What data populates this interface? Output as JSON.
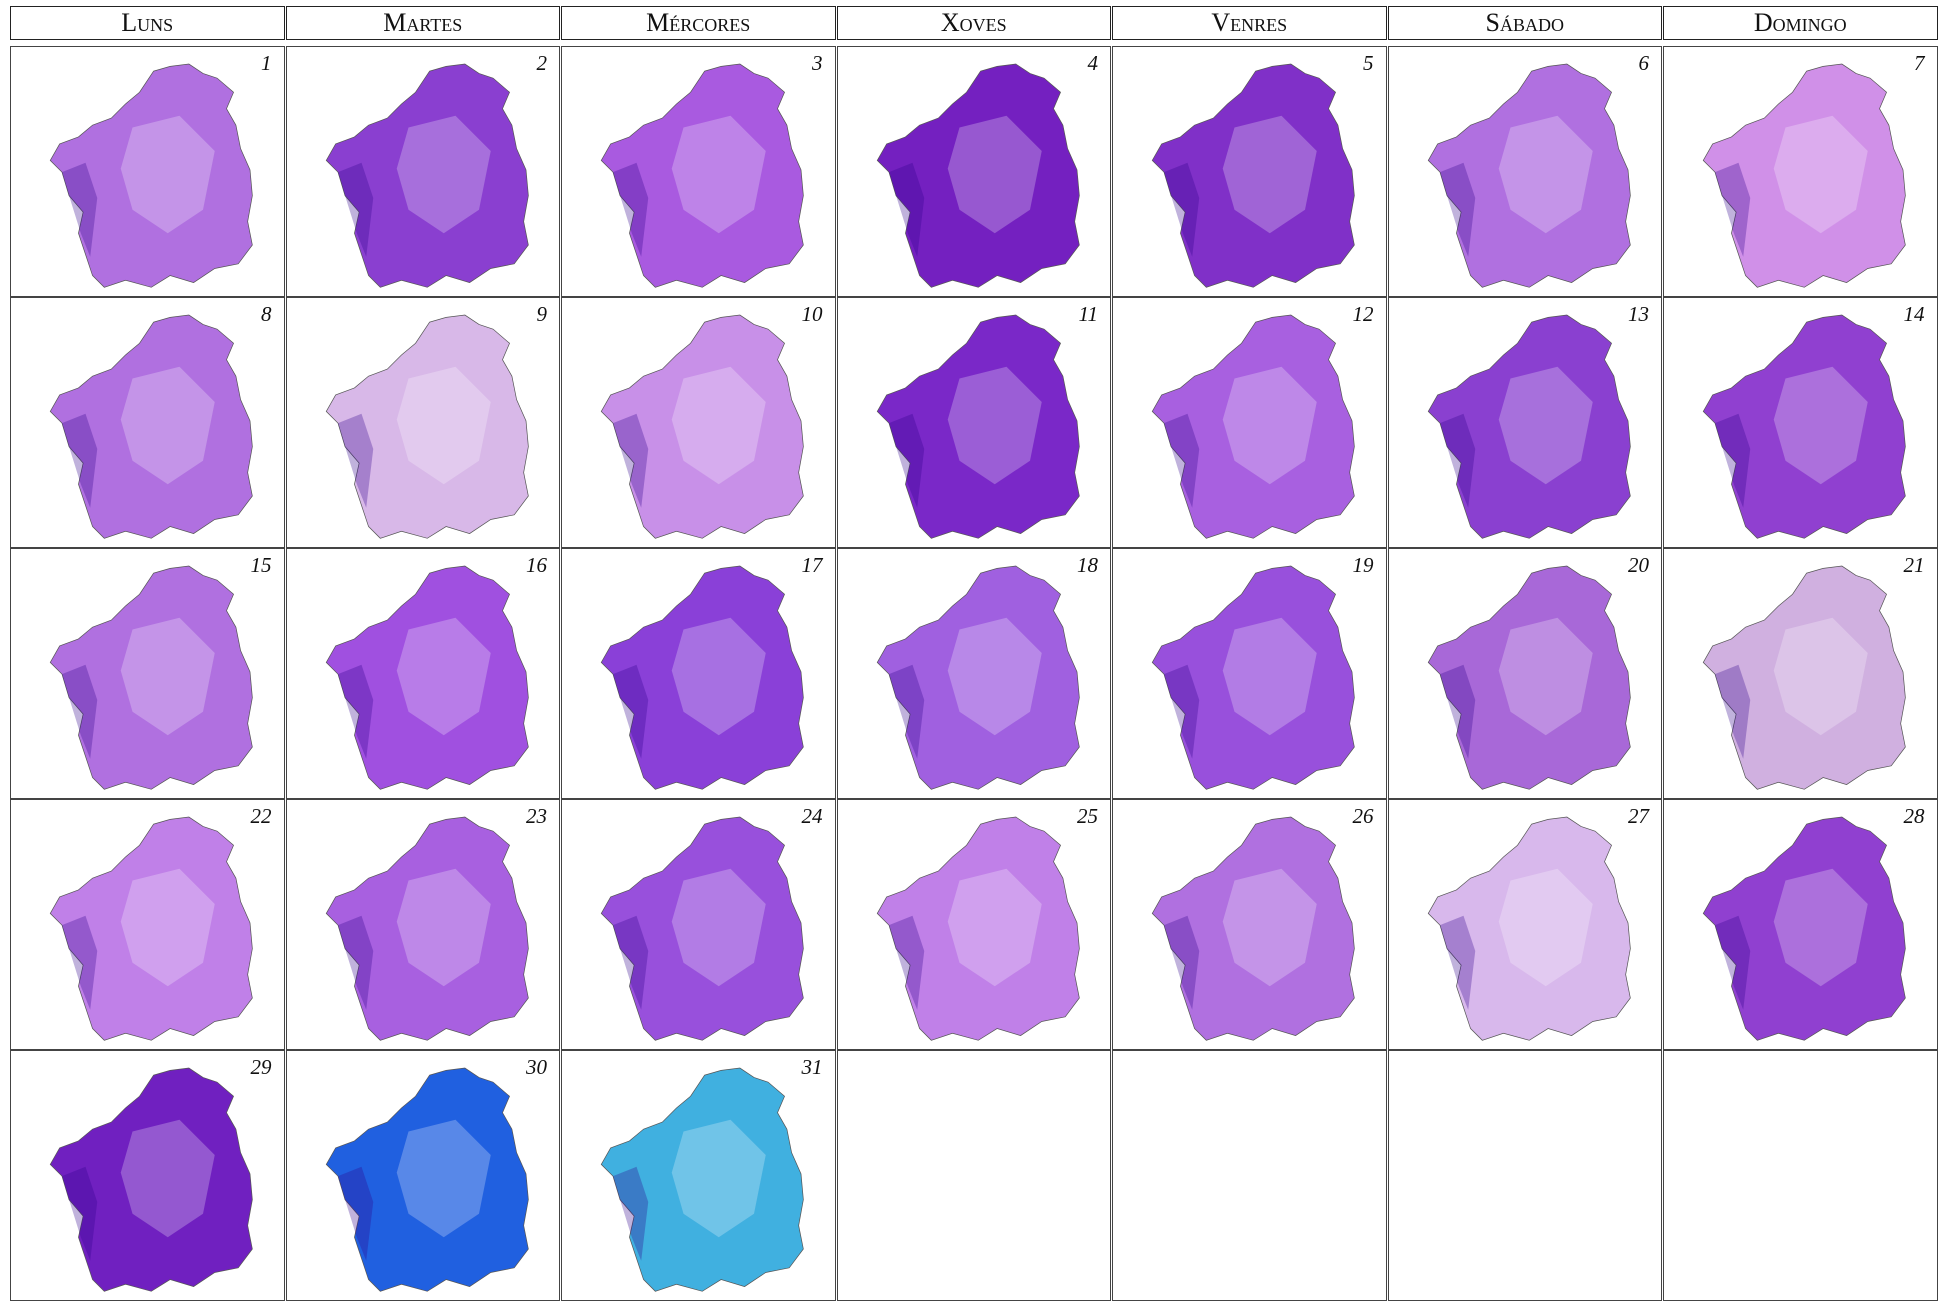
{
  "calendar": {
    "weekdays": [
      "Luns",
      "Martes",
      "Mércores",
      "Xoves",
      "Venres",
      "Sábado",
      "Domingo"
    ],
    "days": [
      {
        "day": 1,
        "color": "#b070e0"
      },
      {
        "day": 2,
        "color": "#8a3fd0"
      },
      {
        "day": 3,
        "color": "#a95ae0"
      },
      {
        "day": 4,
        "color": "#7420c0"
      },
      {
        "day": 5,
        "color": "#8030c8"
      },
      {
        "day": 6,
        "color": "#b070e0"
      },
      {
        "day": 7,
        "color": "#d090e8"
      },
      {
        "day": 8,
        "color": "#b070e0"
      },
      {
        "day": 9,
        "color": "#d8b8e8"
      },
      {
        "day": 10,
        "color": "#c890e8"
      },
      {
        "day": 11,
        "color": "#7a28c8"
      },
      {
        "day": 12,
        "color": "#a860e0"
      },
      {
        "day": 13,
        "color": "#8a40d0"
      },
      {
        "day": 14,
        "color": "#9040d0"
      },
      {
        "day": 15,
        "color": "#b070e0"
      },
      {
        "day": 16,
        "color": "#a050e0"
      },
      {
        "day": 17,
        "color": "#8a40d8"
      },
      {
        "day": 18,
        "color": "#a060e0"
      },
      {
        "day": 19,
        "color": "#9850dc"
      },
      {
        "day": 20,
        "color": "#a868d8"
      },
      {
        "day": 21,
        "color": "#d0b0e0"
      },
      {
        "day": 22,
        "color": "#c080e8"
      },
      {
        "day": 23,
        "color": "#a860e0"
      },
      {
        "day": 24,
        "color": "#9850dc"
      },
      {
        "day": 25,
        "color": "#c080e8"
      },
      {
        "day": 26,
        "color": "#b070e0"
      },
      {
        "day": 27,
        "color": "#d8b8ec"
      },
      {
        "day": 28,
        "color": "#9040d0"
      },
      {
        "day": 29,
        "color": "#7020c0"
      },
      {
        "day": 30,
        "color": "#2060e0"
      },
      {
        "day": 31,
        "color": "#40b0e0"
      }
    ]
  }
}
